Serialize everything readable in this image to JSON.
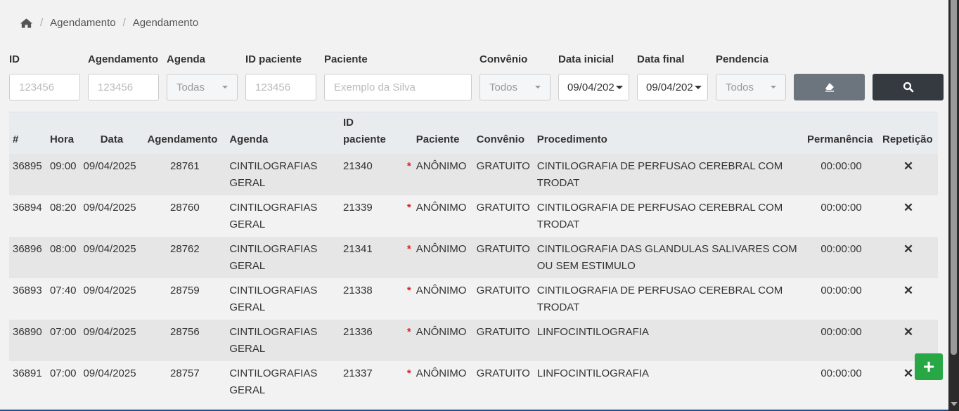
{
  "breadcrumb": [
    "Agendamento",
    "Agendamento"
  ],
  "filters": {
    "id": {
      "label": "ID",
      "placeholder": "123456"
    },
    "agendamento": {
      "label": "Agendamento",
      "placeholder": "123456"
    },
    "agenda": {
      "label": "Agenda",
      "value": "Todas"
    },
    "id_paciente": {
      "label": "ID paciente",
      "placeholder": "123456"
    },
    "paciente": {
      "label": "Paciente",
      "placeholder": "Exemplo da Silva"
    },
    "convenio": {
      "label": "Convênio",
      "value": "Todos"
    },
    "data_inicial": {
      "label": "Data inicial",
      "value": "09/04/202"
    },
    "data_final": {
      "label": "Data final",
      "value": "09/04/202"
    },
    "pendencia": {
      "label": "Pendencia",
      "value": "Todos"
    }
  },
  "table": {
    "headers": [
      "#",
      "Hora",
      "Data",
      "Agendamento",
      "Agenda",
      "ID paciente",
      "",
      "Paciente",
      "Convênio",
      "Procedimento",
      "Permanência",
      "Repetição"
    ],
    "rows": [
      {
        "id": "36895",
        "hora": "09:00",
        "data": "09/04/2025",
        "agendamento": "28761",
        "agenda": "CINTILOGRAFIAS GERAL",
        "id_paciente": "21340",
        "mark": "*",
        "paciente": "ANÔNIMO",
        "convenio": "GRATUITO",
        "procedimento": "CINTILOGRAFIA DE PERFUSAO CEREBRAL COM TRODAT",
        "permanencia": "00:00:00",
        "repeticao": "✕"
      },
      {
        "id": "36894",
        "hora": "08:20",
        "data": "09/04/2025",
        "agendamento": "28760",
        "agenda": "CINTILOGRAFIAS GERAL",
        "id_paciente": "21339",
        "mark": "*",
        "paciente": "ANÔNIMO",
        "convenio": "GRATUITO",
        "procedimento": "CINTILOGRAFIA DE PERFUSAO CEREBRAL COM TRODAT",
        "permanencia": "00:00:00",
        "repeticao": "✕"
      },
      {
        "id": "36896",
        "hora": "08:00",
        "data": "09/04/2025",
        "agendamento": "28762",
        "agenda": "CINTILOGRAFIAS GERAL",
        "id_paciente": "21341",
        "mark": "*",
        "paciente": "ANÔNIMO",
        "convenio": "GRATUITO",
        "procedimento": "CINTILOGRAFIA DAS GLANDULAS SALIVARES COM OU SEM ESTIMULO",
        "permanencia": "00:00:00",
        "repeticao": "✕"
      },
      {
        "id": "36893",
        "hora": "07:40",
        "data": "09/04/2025",
        "agendamento": "28759",
        "agenda": "CINTILOGRAFIAS GERAL",
        "id_paciente": "21338",
        "mark": "*",
        "paciente": "ANÔNIMO",
        "convenio": "GRATUITO",
        "procedimento": "CINTILOGRAFIA DE PERFUSAO CEREBRAL COM TRODAT",
        "permanencia": "00:00:00",
        "repeticao": "✕"
      },
      {
        "id": "36890",
        "hora": "07:00",
        "data": "09/04/2025",
        "agendamento": "28756",
        "agenda": "CINTILOGRAFIAS GERAL",
        "id_paciente": "21336",
        "mark": "*",
        "paciente": "ANÔNIMO",
        "convenio": "GRATUITO",
        "procedimento": "LINFOCINTILOGRAFIA",
        "permanencia": "00:00:00",
        "repeticao": "✕"
      },
      {
        "id": "36891",
        "hora": "07:00",
        "data": "09/04/2025",
        "agendamento": "28757",
        "agenda": "CINTILOGRAFIAS GERAL",
        "id_paciente": "21337",
        "mark": "*",
        "paciente": "ANÔNIMO",
        "convenio": "GRATUITO",
        "procedimento": "LINFOCINTILOGRAFIA",
        "permanencia": "00:00:00",
        "repeticao": "✕"
      }
    ]
  },
  "add_button": "+",
  "colors": {
    "clear_button": "#6c757d",
    "search_button": "#343a40",
    "add_button": "#28a745",
    "required_mark": "#e02020"
  }
}
